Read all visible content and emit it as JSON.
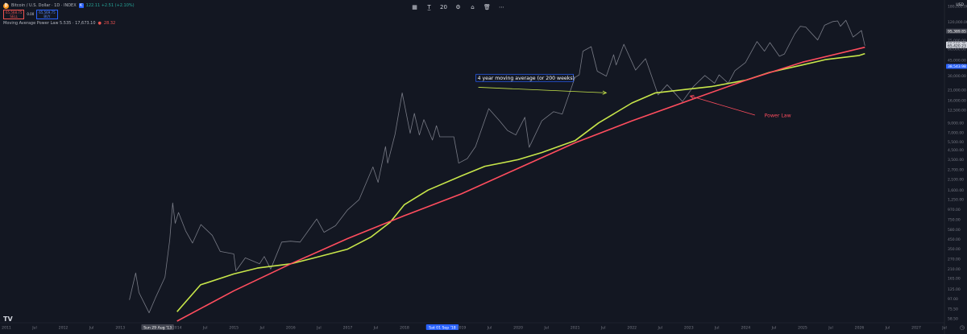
{
  "header": {
    "symbol": "Bitcoin / U.S. Dollar · 1D · INDEX",
    "price_change": "122.11 +2.51 (+2.10%)",
    "sell_price": "65,568.75",
    "sell_label": "SELL",
    "spread": "0.00",
    "buy_price": "65,569.75",
    "buy_label": "BUY",
    "indicator_label": "Moving Average Power Law 5.535 · 17,673.10",
    "indicator_value": "28.32"
  },
  "toolbar": {
    "icons": [
      "layout-icon",
      "text-tool-icon",
      "number-20",
      "camera-icon",
      "save-icon",
      "trash-icon",
      "more-icon"
    ],
    "number": "20"
  },
  "currency": "USD",
  "colors": {
    "background": "#131722",
    "price": "#787b86",
    "ma": "#c8e64a",
    "power_law": "#ff4d5e",
    "annotation_text": "#ffffff",
    "annotation_border": "#2962ff"
  },
  "chart_data": {
    "type": "line",
    "yscale": "log",
    "ylim": [
      55,
      180000
    ],
    "xlim": [
      "2011-01-01",
      "2027-07-01"
    ],
    "series": [
      {
        "name": "",
        "role": "price",
        "points": [
          [
            "2013-03-01",
            95
          ],
          [
            "2013-04-10",
            190
          ],
          [
            "2013-05-01",
            115
          ],
          [
            "2013-07-05",
            68
          ],
          [
            "2013-08-15",
            100
          ],
          [
            "2013-10-15",
            170
          ],
          [
            "2013-11-15",
            450
          ],
          [
            "2013-12-04",
            1150
          ],
          [
            "2013-12-20",
            680
          ],
          [
            "2014-01-10",
            900
          ],
          [
            "2014-02-25",
            560
          ],
          [
            "2014-04-10",
            410
          ],
          [
            "2014-06-03",
            660
          ],
          [
            "2014-08-15",
            500
          ],
          [
            "2014-10-05",
            330
          ],
          [
            "2014-12-31",
            310
          ],
          [
            "2015-01-14",
            200
          ],
          [
            "2015-03-15",
            280
          ],
          [
            "2015-06-15",
            240
          ],
          [
            "2015-07-15",
            290
          ],
          [
            "2015-08-25",
            210
          ],
          [
            "2015-11-04",
            420
          ],
          [
            "2015-12-31",
            430
          ],
          [
            "2016-03-01",
            420
          ],
          [
            "2016-06-16",
            760
          ],
          [
            "2016-08-02",
            540
          ],
          [
            "2016-10-15",
            640
          ],
          [
            "2016-12-31",
            960
          ],
          [
            "2017-03-15",
            1250
          ],
          [
            "2017-06-12",
            2900
          ],
          [
            "2017-07-15",
            1950
          ],
          [
            "2017-09-01",
            4900
          ],
          [
            "2017-09-15",
            3200
          ],
          [
            "2017-11-01",
            6700
          ],
          [
            "2017-12-17",
            19500
          ],
          [
            "2018-02-06",
            6900
          ],
          [
            "2018-03-05",
            11500
          ],
          [
            "2018-04-06",
            6600
          ],
          [
            "2018-05-05",
            9800
          ],
          [
            "2018-06-29",
            5800
          ],
          [
            "2018-07-25",
            8400
          ],
          [
            "2018-08-15",
            6300
          ],
          [
            "2018-11-14",
            6300
          ],
          [
            "2018-12-15",
            3200
          ],
          [
            "2019-02-08",
            3600
          ],
          [
            "2019-04-02",
            4900
          ],
          [
            "2019-06-26",
            13000
          ],
          [
            "2019-09-01",
            9600
          ],
          [
            "2019-10-25",
            7400
          ],
          [
            "2019-12-17",
            6600
          ],
          [
            "2020-02-13",
            10400
          ],
          [
            "2020-03-12",
            4800
          ],
          [
            "2020-06-01",
            9500
          ],
          [
            "2020-08-15",
            12000
          ],
          [
            "2020-10-10",
            11300
          ],
          [
            "2020-12-31",
            29000
          ],
          [
            "2021-01-27",
            31000
          ],
          [
            "2021-02-20",
            57000
          ],
          [
            "2021-04-14",
            64000
          ],
          [
            "2021-05-23",
            34000
          ],
          [
            "2021-07-20",
            30000
          ],
          [
            "2021-09-05",
            52000
          ],
          [
            "2021-09-21",
            40000
          ],
          [
            "2021-11-10",
            68000
          ],
          [
            "2022-01-24",
            35000
          ],
          [
            "2022-03-29",
            47000
          ],
          [
            "2022-06-18",
            18500
          ],
          [
            "2022-08-15",
            24000
          ],
          [
            "2022-11-21",
            15600
          ],
          [
            "2023-01-31",
            23000
          ],
          [
            "2023-04-14",
            30500
          ],
          [
            "2023-06-15",
            25000
          ],
          [
            "2023-07-15",
            31000
          ],
          [
            "2023-09-11",
            25000
          ],
          [
            "2023-10-24",
            34500
          ],
          [
            "2023-12-31",
            42500
          ],
          [
            "2024-03-14",
            73000
          ],
          [
            "2024-05-01",
            57000
          ],
          [
            "2024-06-05",
            71000
          ],
          [
            "2024-08-05",
            50000
          ],
          [
            "2024-09-06",
            53000
          ],
          [
            "2024-11-12",
            89000
          ],
          [
            "2024-12-17",
            108000
          ],
          [
            "2025-01-21",
            106000
          ],
          [
            "2025-04-08",
            76000
          ],
          [
            "2025-05-22",
            111000
          ],
          [
            "2025-07-14",
            122000
          ],
          [
            "2025-08-14",
            124000
          ],
          [
            "2025-09-01",
            108000
          ],
          [
            "2025-10-06",
            126000
          ],
          [
            "2025-11-21",
            82000
          ],
          [
            "2025-12-15",
            88000
          ],
          [
            "2026-01-14",
            97000
          ],
          [
            "2026-02-05",
            65570
          ]
        ]
      },
      {
        "name": "",
        "role": "4 year moving average",
        "points": [
          [
            "2014-01-01",
            70
          ],
          [
            "2014-06-01",
            140
          ],
          [
            "2014-12-31",
            185
          ],
          [
            "2015-06-01",
            215
          ],
          [
            "2015-12-31",
            240
          ],
          [
            "2016-06-01",
            280
          ],
          [
            "2016-12-31",
            350
          ],
          [
            "2017-06-01",
            480
          ],
          [
            "2017-10-01",
            700
          ],
          [
            "2017-12-31",
            1100
          ],
          [
            "2018-06-01",
            1600
          ],
          [
            "2018-12-31",
            2300
          ],
          [
            "2019-06-01",
            2950
          ],
          [
            "2019-12-31",
            3500
          ],
          [
            "2020-06-01",
            4200
          ],
          [
            "2020-12-31",
            5700
          ],
          [
            "2021-06-01",
            9000
          ],
          [
            "2021-12-31",
            15000
          ],
          [
            "2022-06-01",
            19500
          ],
          [
            "2022-12-31",
            21500
          ],
          [
            "2023-06-01",
            23000
          ],
          [
            "2023-12-31",
            27000
          ],
          [
            "2024-06-01",
            33000
          ],
          [
            "2024-12-31",
            40000
          ],
          [
            "2025-06-01",
            46000
          ],
          [
            "2025-12-31",
            51000
          ],
          [
            "2026-02-05",
            53500
          ]
        ]
      },
      {
        "name": "",
        "role": "power law",
        "points": [
          [
            "2014-01-01",
            55
          ],
          [
            "2015-01-01",
            120
          ],
          [
            "2016-01-01",
            240
          ],
          [
            "2017-01-01",
            460
          ],
          [
            "2018-01-01",
            830
          ],
          [
            "2019-01-01",
            1450
          ],
          [
            "2020-01-01",
            2800
          ],
          [
            "2021-01-01",
            5400
          ],
          [
            "2022-01-01",
            9500
          ],
          [
            "2023-01-01",
            16000
          ],
          [
            "2024-01-01",
            27000
          ],
          [
            "2025-01-01",
            43000
          ],
          [
            "2026-02-05",
            63000
          ]
        ]
      }
    ],
    "y_ticks": [
      "180,000.00",
      "120,000.00",
      "95,389.85",
      "75,000.00",
      "68,569.75",
      "65,420.23",
      "60,000.00",
      "45,000.00",
      "38,543.98",
      "30,000.00",
      "21,000.00",
      "16,000.00",
      "12,500.00",
      "9,000.00",
      "7,000.00",
      "5,500.00",
      "4,500.00",
      "3,500.00",
      "2,700.00",
      "2,100.00",
      "1,600.00",
      "1,250.00",
      "970.00",
      "750.00",
      "580.00",
      "450.00",
      "350.00",
      "270.00",
      "210.00",
      "165.00",
      "125.00",
      "97.00",
      "75.50",
      "58.50"
    ],
    "y_tick_values": [
      180000,
      120000,
      95389.85,
      75000,
      68569.75,
      65420.23,
      60000,
      45000,
      38543.98,
      30000,
      21000,
      16000,
      12500,
      9000,
      7000,
      5500,
      4500,
      3500,
      2700,
      2100,
      1600,
      1250,
      970,
      750,
      580,
      450,
      350,
      270,
      210,
      165,
      125,
      97,
      75.5,
      58.5
    ],
    "highlight_ticks": [
      {
        "label": "95,389.85",
        "value": 95389.85,
        "style": "boxed-gray"
      },
      {
        "label": "68,569.75",
        "value": 68569.75,
        "style": "boxed-white"
      },
      {
        "label": "65,420.23",
        "value": 65420.23,
        "style": "boxed-white"
      },
      {
        "label": "38,543.98",
        "value": 38543.98,
        "style": "boxed-blue"
      }
    ],
    "x_ticks": [
      {
        "label": "2011",
        "date": "2011-01-01"
      },
      {
        "label": "Jul",
        "date": "2011-07-01"
      },
      {
        "label": "2012",
        "date": "2012-01-01"
      },
      {
        "label": "Jul",
        "date": "2012-07-01"
      },
      {
        "label": "2013",
        "date": "2013-01-01"
      },
      {
        "label": "Sun 29 Aug '13",
        "date": "2013-08-29",
        "highlight": "gray"
      },
      {
        "label": "2014",
        "date": "2014-01-01"
      },
      {
        "label": "Jul",
        "date": "2014-07-01"
      },
      {
        "label": "2015",
        "date": "2015-01-01"
      },
      {
        "label": "Jul",
        "date": "2015-07-01"
      },
      {
        "label": "2016",
        "date": "2016-01-01"
      },
      {
        "label": "Jul",
        "date": "2016-07-01"
      },
      {
        "label": "2017",
        "date": "2017-01-01"
      },
      {
        "label": "Jul",
        "date": "2017-07-01"
      },
      {
        "label": "2018",
        "date": "2018-01-01"
      },
      {
        "label": "Sat 01 Sep '18",
        "date": "2018-09-01",
        "highlight": "blue"
      },
      {
        "label": "2019",
        "date": "2019-01-01"
      },
      {
        "label": "Jul",
        "date": "2019-07-01"
      },
      {
        "label": "2020",
        "date": "2020-01-01"
      },
      {
        "label": "Jul",
        "date": "2020-07-01"
      },
      {
        "label": "2021",
        "date": "2021-01-01"
      },
      {
        "label": "Jul",
        "date": "2021-07-01"
      },
      {
        "label": "2022",
        "date": "2022-01-01"
      },
      {
        "label": "Jul",
        "date": "2022-07-01"
      },
      {
        "label": "2023",
        "date": "2023-01-01"
      },
      {
        "label": "Jul",
        "date": "2023-07-01"
      },
      {
        "label": "2024",
        "date": "2024-01-01"
      },
      {
        "label": "Jul",
        "date": "2024-07-01"
      },
      {
        "label": "2025",
        "date": "2025-01-01"
      },
      {
        "label": "Jul",
        "date": "2025-07-01"
      },
      {
        "label": "2026",
        "date": "2026-01-01"
      },
      {
        "label": "Jul",
        "date": "2026-07-01"
      },
      {
        "label": "2027",
        "date": "2027-01-01"
      },
      {
        "label": "Jul",
        "date": "2027-07-01"
      }
    ],
    "annotations": [
      {
        "text": "4 year moving average (or 200 weeks)",
        "boxed": true,
        "color": "#ffffff",
        "anchor": [
          "2019-04-15",
          27500
        ],
        "arrow_from": [
          "2019-04-20",
          22500
        ],
        "arrow_to": [
          "2021-07-20",
          19500
        ]
      },
      {
        "text": "Power Law",
        "boxed": false,
        "color": "#ff4d5e",
        "anchor": [
          "2024-05-01",
          10500
        ],
        "arrow_from": [
          "2024-03-01",
          11000
        ],
        "arrow_to": [
          "2023-01-10",
          18000
        ]
      }
    ],
    "grid": false
  }
}
